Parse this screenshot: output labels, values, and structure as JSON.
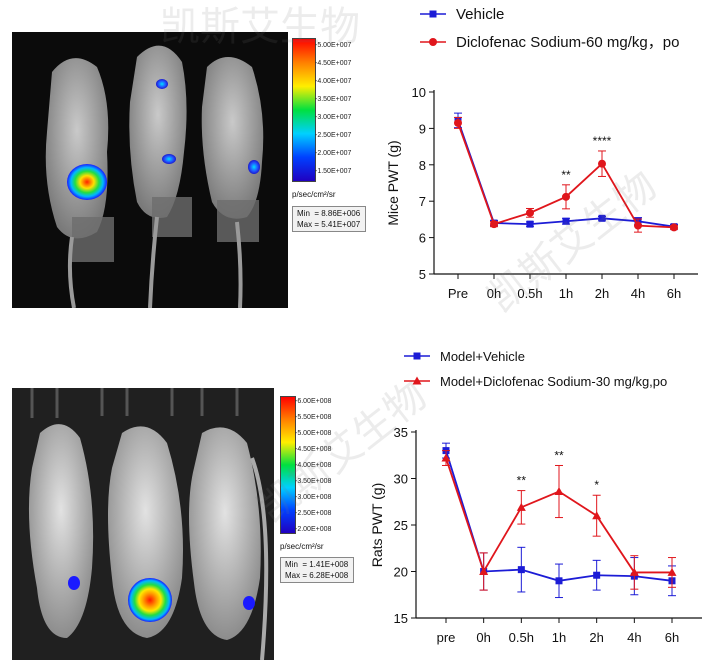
{
  "panel_top": {
    "colorbar": {
      "ticks": [
        "5.00E+007",
        "4.50E+007",
        "4.00E+007",
        "3.50E+007",
        "3.00E+007",
        "2.50E+007",
        "2.00E+007",
        "1.50E+007"
      ],
      "unit": "p/sec/cm²/sr",
      "min_label": "Min",
      "min_value": "8.86E+006",
      "max_label": "Max",
      "max_value": "5.41E+007"
    }
  },
  "panel_bottom": {
    "colorbar": {
      "ticks": [
        "6.00E+008",
        "5.50E+008",
        "5.00E+008",
        "4.50E+008",
        "4.00E+008",
        "3.50E+008",
        "3.00E+008",
        "2.50E+008",
        "2.00E+008"
      ],
      "unit": "p/sec/cm²/sr",
      "min_label": "Min",
      "min_value": "1.41E+008",
      "max_label": "Max",
      "max_value": "6.28E+008"
    }
  },
  "watermark": "凯斯艾生物",
  "colors": {
    "vehicle": "#1c1cd6",
    "drug": "#e0161c",
    "axis": "#111111"
  },
  "chart_data": [
    {
      "type": "line",
      "title": "",
      "xlabel": "",
      "ylabel": "Mice PWT (g)",
      "categories": [
        "Pre",
        "0h",
        "0.5h",
        "1h",
        "2h",
        "4h",
        "6h"
      ],
      "ylim": [
        5,
        10
      ],
      "yticks": [
        5,
        6,
        7,
        8,
        9,
        10
      ],
      "legend_position": "top",
      "series": [
        {
          "name": "Vehicle",
          "marker": "square",
          "values": [
            9.22,
            6.4,
            6.37,
            6.45,
            6.53,
            6.45,
            6.3
          ],
          "errors": [
            0.2,
            0.07,
            0.06,
            0.08,
            0.05,
            0.1,
            0.06
          ]
        },
        {
          "name": "Diclofenac Sodium-60 mg/kg，po",
          "marker": "circle",
          "values": [
            9.15,
            6.37,
            6.68,
            7.12,
            8.03,
            6.33,
            6.28
          ],
          "errors": [
            0.15,
            0.07,
            0.12,
            0.33,
            0.35,
            0.18,
            0.05
          ]
        }
      ],
      "annotations": [
        {
          "category": "1h",
          "text": "**"
        },
        {
          "category": "2h",
          "text": "****"
        }
      ]
    },
    {
      "type": "line",
      "title": "",
      "xlabel": "",
      "ylabel": "Rats PWT (g)",
      "categories": [
        "pre",
        "0h",
        "0.5h",
        "1h",
        "2h",
        "4h",
        "6h"
      ],
      "ylim": [
        15,
        35
      ],
      "yticks": [
        15,
        20,
        25,
        30,
        35
      ],
      "legend_position": "top",
      "series": [
        {
          "name": "Model+Vehicle",
          "marker": "square",
          "values": [
            33.0,
            20.0,
            20.2,
            19.0,
            19.6,
            19.5,
            19.0
          ],
          "errors": [
            0.8,
            2.0,
            2.4,
            1.8,
            1.6,
            2.0,
            1.6
          ]
        },
        {
          "name": "Model+Diclofenac Sodium-30 mg/kg,po",
          "marker": "triangle",
          "values": [
            32.2,
            20.0,
            26.9,
            28.6,
            26.0,
            19.9,
            19.9
          ],
          "errors": [
            0.8,
            2.0,
            1.8,
            2.8,
            2.2,
            1.8,
            1.6
          ]
        }
      ],
      "annotations": [
        {
          "category": "0.5h",
          "text": "**"
        },
        {
          "category": "1h",
          "text": "**"
        },
        {
          "category": "2h",
          "text": "*"
        }
      ]
    }
  ]
}
